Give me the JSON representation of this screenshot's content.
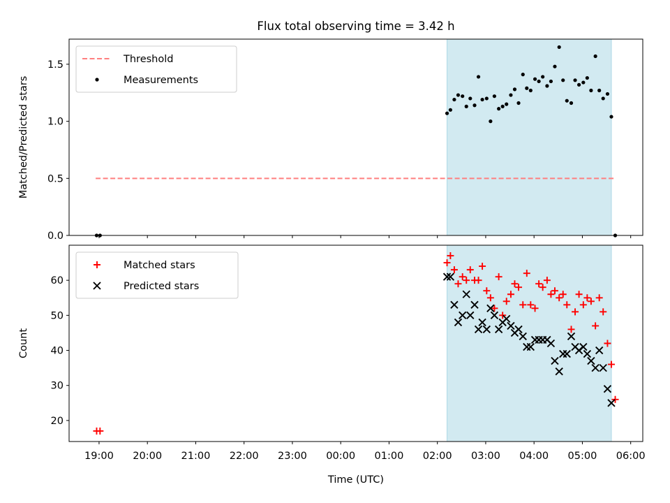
{
  "figure": {
    "title": "Flux total observing time = 3.42 h",
    "xlabel": "Time (UTC)"
  },
  "x_ticks": [
    "19:00",
    "20:00",
    "21:00",
    "22:00",
    "23:00",
    "00:00",
    "01:00",
    "02:00",
    "03:00",
    "04:00",
    "05:00",
    "06:00"
  ],
  "colors": {
    "threshold": "#ff7f7f",
    "measurement": "#000000",
    "matched": "#ff0000",
    "predicted": "#000000",
    "shade": "#add8e6"
  },
  "chart_data": [
    {
      "type": "scatter",
      "ylabel": "Matched/Predicted stars",
      "ylim": [
        0,
        1.72
      ],
      "y_ticks": [
        0.0,
        0.5,
        1.0,
        1.5
      ],
      "y_tick_labels": [
        "0.0",
        "0.5",
        "1.0",
        "1.5"
      ],
      "xlim_hours": [
        18.38,
        30.25
      ],
      "shaded_span_hours": [
        26.2,
        29.6
      ],
      "legend_position": "top-left",
      "threshold": {
        "name": "Threshold",
        "value": 0.5,
        "x_range_hours": [
          18.93,
          29.68
        ]
      },
      "series": [
        {
          "name": "Measurements",
          "marker": "dot",
          "x_hours": [
            18.95,
            19.02,
            26.2,
            26.27,
            26.35,
            26.43,
            26.52,
            26.6,
            26.68,
            26.77,
            26.85,
            26.93,
            27.02,
            27.1,
            27.18,
            27.27,
            27.35,
            27.43,
            27.52,
            27.6,
            27.68,
            27.77,
            27.85,
            27.93,
            28.02,
            28.1,
            28.18,
            28.27,
            28.35,
            28.43,
            28.52,
            28.6,
            28.68,
            28.77,
            28.85,
            28.93,
            29.02,
            29.1,
            29.18,
            29.27,
            29.35,
            29.43,
            29.52,
            29.6,
            29.68
          ],
          "values": [
            0.0,
            0.0,
            1.07,
            1.1,
            1.19,
            1.23,
            1.22,
            1.13,
            1.2,
            1.14,
            1.39,
            1.19,
            1.2,
            1.0,
            1.22,
            1.11,
            1.13,
            1.15,
            1.23,
            1.28,
            1.16,
            1.41,
            1.29,
            1.27,
            1.37,
            1.35,
            1.39,
            1.31,
            1.35,
            1.48,
            1.65,
            1.36,
            1.18,
            1.16,
            1.36,
            1.32,
            1.34,
            1.38,
            1.27,
            1.57,
            1.27,
            1.2,
            1.24,
            1.04,
            0.0
          ]
        }
      ]
    },
    {
      "type": "scatter",
      "ylabel": "Count",
      "ylim": [
        14,
        70
      ],
      "y_ticks": [
        20,
        30,
        40,
        50,
        60
      ],
      "y_tick_labels": [
        "20",
        "30",
        "40",
        "50",
        "60"
      ],
      "xlim_hours": [
        18.38,
        30.25
      ],
      "shaded_span_hours": [
        26.2,
        29.6
      ],
      "legend_position": "top-left",
      "series": [
        {
          "name": "Matched stars",
          "marker": "plus",
          "x_hours": [
            18.95,
            19.02,
            26.2,
            26.27,
            26.35,
            26.43,
            26.52,
            26.6,
            26.68,
            26.77,
            26.85,
            26.93,
            27.02,
            27.1,
            27.18,
            27.27,
            27.35,
            27.43,
            27.52,
            27.6,
            27.68,
            27.77,
            27.85,
            27.93,
            28.02,
            28.1,
            28.18,
            28.27,
            28.35,
            28.43,
            28.52,
            28.6,
            28.68,
            28.77,
            28.85,
            28.93,
            29.02,
            29.1,
            29.18,
            29.27,
            29.35,
            29.43,
            29.52,
            29.6,
            29.68
          ],
          "values": [
            17,
            17,
            65,
            67,
            63,
            59,
            61,
            60,
            63,
            60,
            60,
            64,
            57,
            55,
            52,
            61,
            50,
            54,
            56,
            59,
            58,
            53,
            62,
            53,
            52,
            59,
            58,
            60,
            56,
            57,
            55,
            56,
            53,
            46,
            51,
            56,
            53,
            55,
            54,
            47,
            55,
            51,
            42,
            36,
            26
          ]
        },
        {
          "name": "Predicted stars",
          "marker": "x",
          "x_hours": [
            26.2,
            26.27,
            26.35,
            26.43,
            26.52,
            26.6,
            26.68,
            26.77,
            26.85,
            26.93,
            27.02,
            27.1,
            27.18,
            27.27,
            27.35,
            27.43,
            27.52,
            27.6,
            27.68,
            27.77,
            27.85,
            27.93,
            28.02,
            28.1,
            28.18,
            28.27,
            28.35,
            28.43,
            28.52,
            28.6,
            28.68,
            28.77,
            28.85,
            28.93,
            29.02,
            29.1,
            29.18,
            29.27,
            29.35,
            29.43,
            29.52,
            29.6
          ],
          "values": [
            61,
            61,
            53,
            48,
            50,
            56,
            50,
            53,
            46,
            48,
            46,
            52,
            50,
            46,
            48,
            49,
            47,
            45,
            46,
            44,
            41,
            41,
            43,
            43,
            43,
            43,
            42,
            37,
            34,
            39,
            39,
            44,
            41,
            40,
            41,
            39,
            37,
            35,
            40,
            35,
            29,
            25
          ]
        }
      ]
    }
  ]
}
